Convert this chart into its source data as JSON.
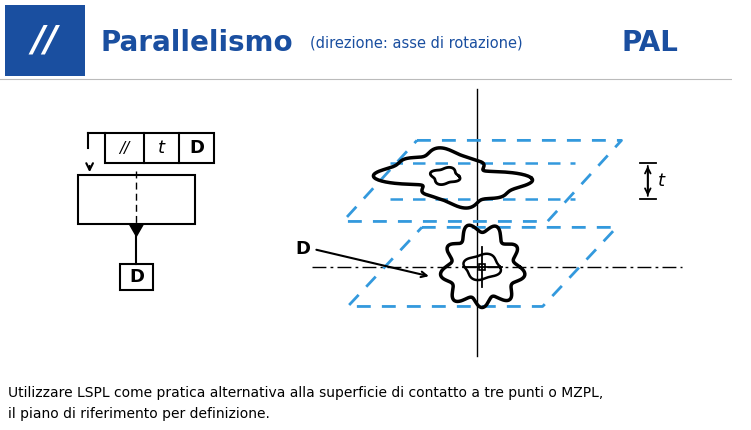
{
  "bg_color": "#ffffff",
  "header_box_color": "#1a4fa0",
  "title_main": "Parallelismo",
  "title_sub": "(direzione: asse di rotazione)",
  "title_code": "PAL",
  "footer_text": "Utilizzare LSPL come pratica alternativa alla superficie di contatto a tre punti o MZPL,\nil piano di riferimento per definizione.",
  "blue_dashed_color": "#3399dd",
  "black_color": "#000000",
  "dark_blue_title": "#1a4fa0",
  "gray_line": "#bbbbbb"
}
